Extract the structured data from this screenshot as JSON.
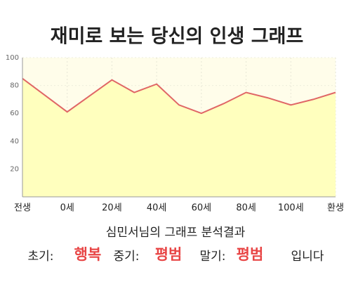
{
  "chart_data": {
    "type": "area",
    "title": "재미로 보는 당신의 인생 그래프",
    "categories": [
      "전생",
      null,
      "0세",
      null,
      "20세",
      null,
      "40세",
      null,
      "60세",
      null,
      "80세",
      null,
      "100세",
      null,
      "환생"
    ],
    "values": [
      85,
      73,
      61,
      72.5,
      84,
      75,
      81,
      66,
      60,
      67,
      75,
      71,
      66,
      70,
      75
    ],
    "color": "#e06666",
    "fill": "#ffffbe",
    "ylim": [
      0,
      100
    ],
    "yticks": [
      20,
      40,
      60,
      80,
      100
    ],
    "grid": true
  },
  "result": {
    "heading": "심민서님의 그래프 분석결과",
    "parts": [
      "초기:",
      "행복",
      "중기:",
      "평범",
      "말기:",
      "평범",
      "입니다"
    ]
  }
}
